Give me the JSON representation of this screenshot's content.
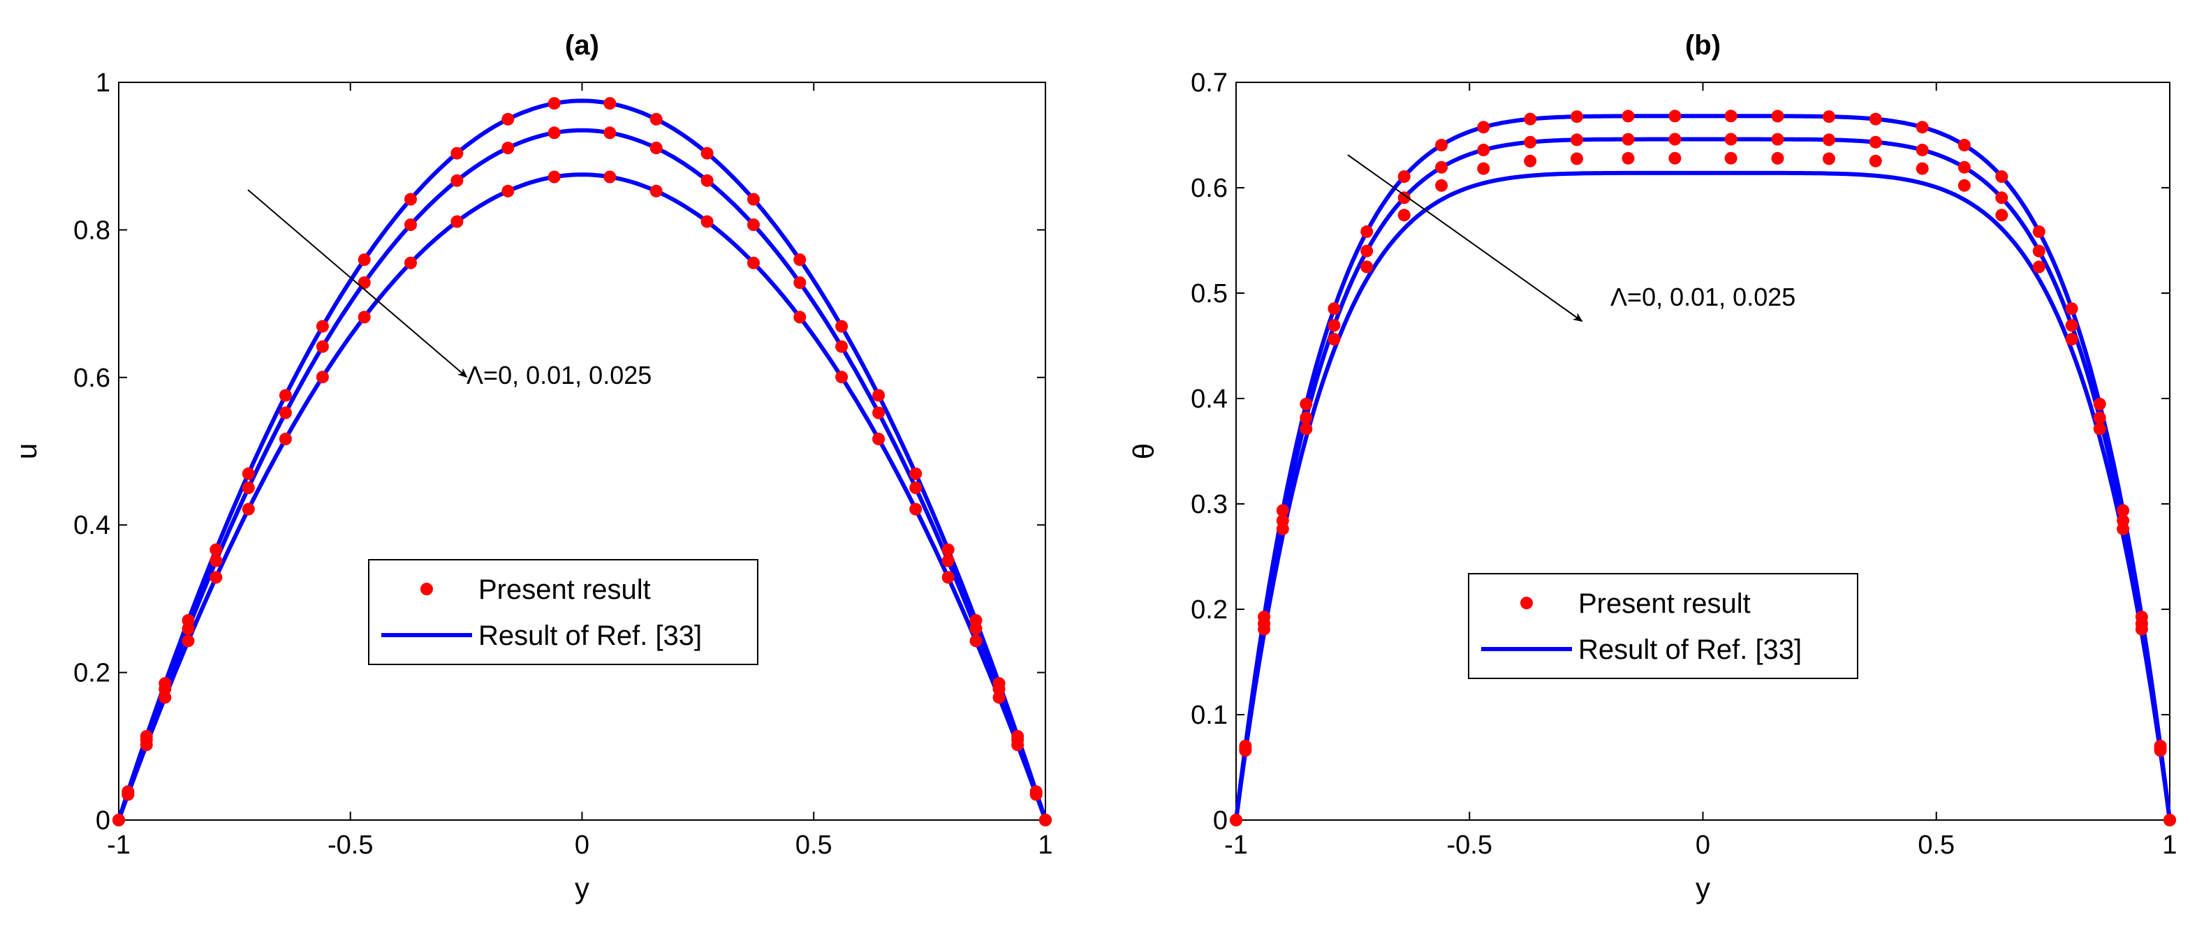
{
  "chart_data": [
    {
      "type": "line",
      "title": "(a)",
      "xlabel": "y",
      "ylabel": "u",
      "xlim": [
        -1,
        1
      ],
      "ylim": [
        0,
        1
      ],
      "xticks": [
        "-1",
        "-0.5",
        "0",
        "0.5",
        "1"
      ],
      "yticks": [
        "0",
        "0.2",
        "0.4",
        "0.6",
        "0.8",
        "1"
      ],
      "annotation": "Λ=0, 0.01, 0.025",
      "legend": {
        "position": "center-bottom",
        "entries": [
          "Present result",
          "Result of Ref. [33]"
        ]
      },
      "series": [
        {
          "name": "Result of Ref. [33] (Λ=0)",
          "style": "line",
          "color": "#0000ff",
          "peak": 0.975,
          "shape": "parabolic"
        },
        {
          "name": "Result of Ref. [33] (Λ=0.01)",
          "style": "line",
          "color": "#0000ff",
          "peak": 0.935,
          "shape": "parabolic"
        },
        {
          "name": "Result of Ref. [33] (Λ=0.025)",
          "style": "line",
          "color": "#0000ff",
          "peak": 0.875,
          "shape": "parabolic"
        },
        {
          "name": "Present result (Λ=0)",
          "style": "markers",
          "color": "#ff0000",
          "peak": 0.975,
          "shape": "parabolic"
        },
        {
          "name": "Present result (Λ=0.01)",
          "style": "markers",
          "color": "#ff0000",
          "peak": 0.935,
          "shape": "parabolic"
        },
        {
          "name": "Present result (Λ=0.025)",
          "style": "markers",
          "color": "#ff0000",
          "peak": 0.875,
          "shape": "parabolic"
        }
      ],
      "marker_x": [
        -1,
        -0.98,
        -0.94,
        -0.9,
        -0.85,
        -0.79,
        -0.72,
        -0.64,
        -0.56,
        -0.47,
        -0.37,
        -0.27,
        -0.16,
        -0.06,
        0.06,
        0.16,
        0.27,
        0.37,
        0.47,
        0.56,
        0.64,
        0.72,
        0.79,
        0.85,
        0.9,
        0.94,
        0.98,
        1
      ]
    },
    {
      "type": "line",
      "title": "(b)",
      "xlabel": "y",
      "ylabel": "θ",
      "xlim": [
        -1,
        1
      ],
      "ylim": [
        0,
        0.7
      ],
      "xticks": [
        "-1",
        "-0.5",
        "0",
        "0.5",
        "1"
      ],
      "yticks": [
        "0",
        "0.1",
        "0.2",
        "0.3",
        "0.4",
        "0.5",
        "0.6",
        "0.7"
      ],
      "annotation": "Λ=0, 0.01, 0.025",
      "legend": {
        "position": "center-bottom",
        "entries": [
          "Present result",
          "Result of Ref. [33]"
        ]
      },
      "series": [
        {
          "name": "Result of Ref. [33] (Λ=0)",
          "style": "line",
          "color": "#0000ff",
          "peak": 0.668,
          "shape": "flat-top"
        },
        {
          "name": "Result of Ref. [33] (Λ=0.01)",
          "style": "line",
          "color": "#0000ff",
          "peak": 0.646,
          "shape": "flat-top"
        },
        {
          "name": "Result of Ref. [33] (Λ=0.025)",
          "style": "line",
          "color": "#0000ff",
          "peak": 0.614,
          "shape": "flat-top"
        },
        {
          "name": "Present result (Λ=0)",
          "style": "markers",
          "color": "#ff0000",
          "peak": 0.668,
          "shape": "flat-top"
        },
        {
          "name": "Present result (Λ=0.01)",
          "style": "markers",
          "color": "#ff0000",
          "peak": 0.646,
          "shape": "flat-top"
        },
        {
          "name": "Present result (Λ=0.025)",
          "style": "markers",
          "color": "#ff0000",
          "peak": 0.628,
          "shape": "flat-top"
        }
      ],
      "marker_x": [
        -1,
        -0.98,
        -0.94,
        -0.9,
        -0.85,
        -0.79,
        -0.72,
        -0.64,
        -0.56,
        -0.47,
        -0.37,
        -0.27,
        -0.16,
        -0.06,
        0.06,
        0.16,
        0.27,
        0.37,
        0.47,
        0.56,
        0.64,
        0.72,
        0.79,
        0.85,
        0.9,
        0.94,
        0.98,
        1
      ]
    }
  ]
}
